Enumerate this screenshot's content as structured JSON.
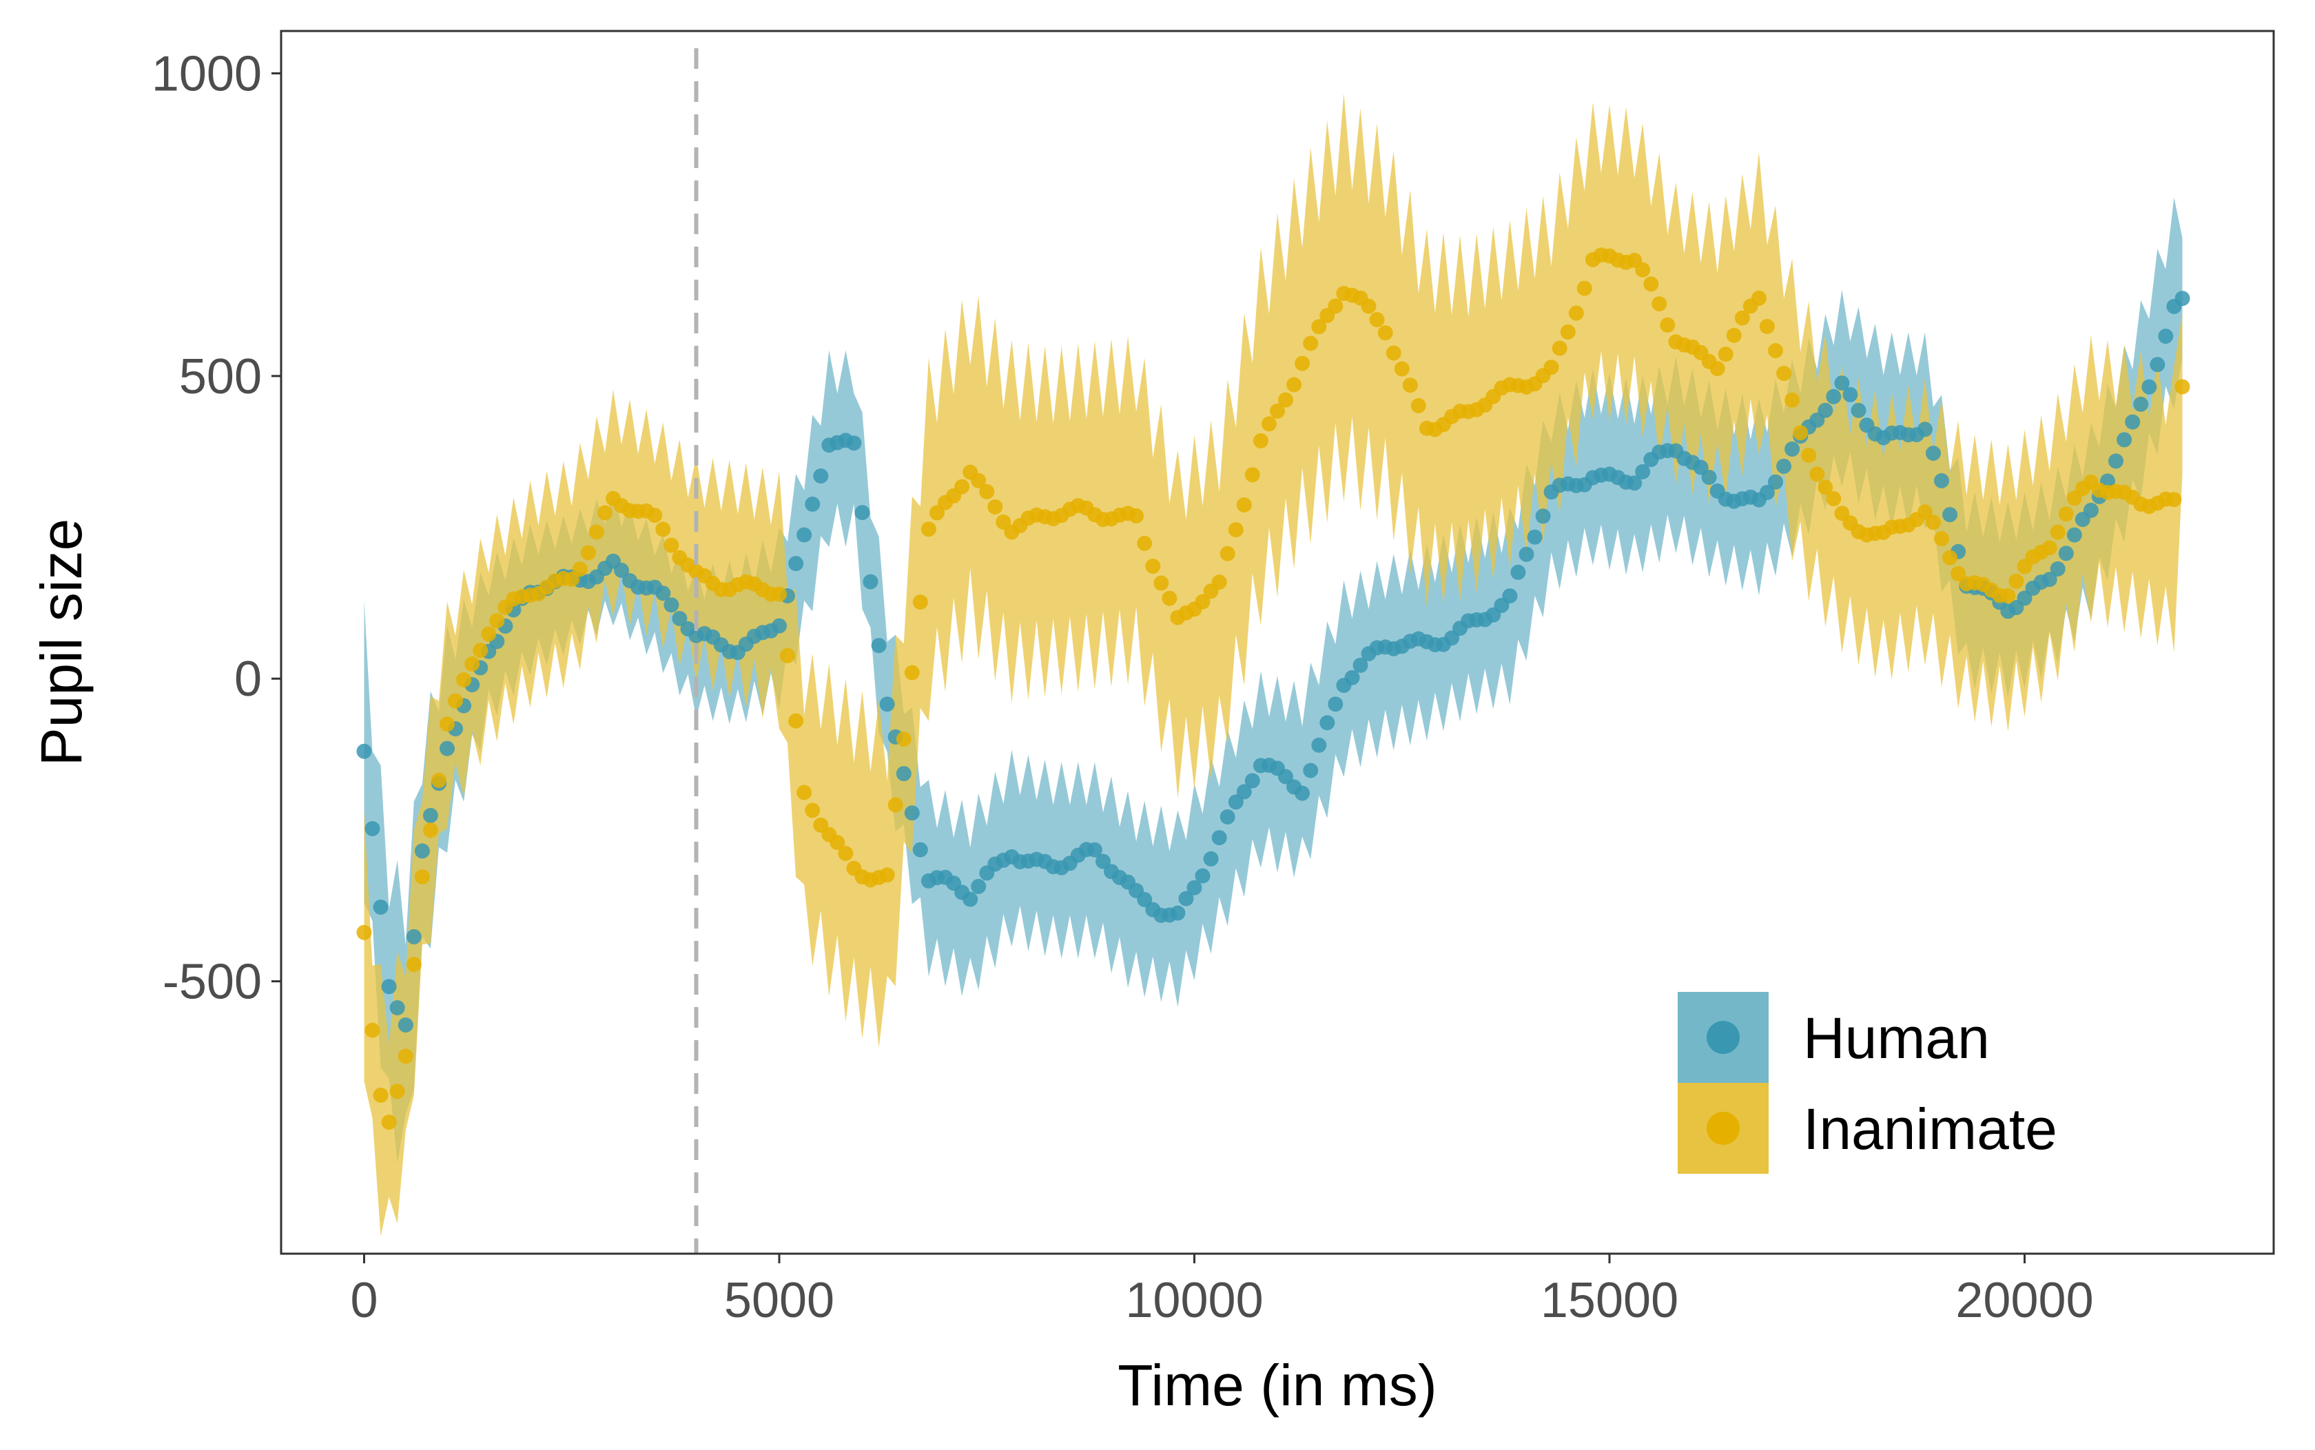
{
  "chart_data": {
    "type": "scatter",
    "title": "",
    "xlabel": "Time (in ms)",
    "ylabel": "Pupil size",
    "xlim": [
      -1000,
      23000
    ],
    "ylim": [
      -950,
      1070
    ],
    "xticks": [
      0,
      5000,
      10000,
      15000,
      20000
    ],
    "xtick_labels": [
      "0",
      "5000",
      "10000",
      "15000",
      "20000"
    ],
    "yticks": [
      -500,
      0,
      500,
      1000
    ],
    "ytick_labels": [
      "-500",
      "0",
      "500",
      "1000"
    ],
    "grid": false,
    "legend_position": "bottom-right",
    "reference_line": {
      "x": 4000,
      "style": "dashed",
      "color": "#b3b3b3"
    },
    "series": [
      {
        "name": "Human",
        "color": "#3a97b1",
        "ribbon_color": "#73b7c9",
        "anchors_x": [
          0,
          150,
          300,
          500,
          700,
          1000,
          1500,
          2000,
          2500,
          3000,
          3500,
          4000,
          4500,
          5000,
          5300,
          5600,
          5900,
          6300,
          6800,
          7300,
          7800,
          8300,
          8800,
          9300,
          9800,
          10300,
          10800,
          11300,
          11800,
          12300,
          12800,
          13300,
          13800,
          14300,
          14800,
          15300,
          15800,
          16300,
          16800,
          17300,
          17800,
          18300,
          18800,
          19300,
          19800,
          20300,
          20800,
          21300,
          21800,
          21900
        ],
        "anchors_y": [
          -120,
          -330,
          -520,
          -580,
          -300,
          -100,
          60,
          130,
          160,
          200,
          140,
          60,
          60,
          100,
          220,
          380,
          380,
          -30,
          -330,
          -370,
          -280,
          -300,
          -300,
          -360,
          -380,
          -270,
          -150,
          -170,
          0,
          40,
          60,
          100,
          120,
          300,
          350,
          330,
          370,
          320,
          300,
          380,
          480,
          410,
          410,
          150,
          130,
          170,
          260,
          420,
          620,
          630
        ],
        "ribbon_halfwidth": [
          200,
          200,
          200,
          200,
          180,
          150,
          110,
          100,
          90,
          90,
          90,
          100,
          110,
          120,
          130,
          130,
          130,
          130,
          130,
          130,
          130,
          130,
          130,
          130,
          130,
          130,
          130,
          130,
          130,
          130,
          130,
          130,
          130,
          130,
          130,
          130,
          130,
          130,
          130,
          130,
          130,
          130,
          130,
          130,
          130,
          130,
          130,
          130,
          140,
          140
        ]
      },
      {
        "name": "Inanimate",
        "color": "#e5b000",
        "ribbon_color": "#e8c341",
        "anchors_x": [
          0,
          150,
          300,
          500,
          700,
          1000,
          1500,
          2000,
          2500,
          3000,
          3500,
          4000,
          4500,
          5000,
          5300,
          5600,
          5900,
          6300,
          6800,
          7300,
          7800,
          8300,
          8800,
          9300,
          9800,
          10300,
          10800,
          11300,
          11800,
          12300,
          12800,
          13300,
          13800,
          14300,
          14800,
          15300,
          15800,
          16300,
          16800,
          17300,
          17800,
          18300,
          18800,
          19300,
          19800,
          20300,
          20800,
          21300,
          21800,
          21900
        ],
        "anchors_y": [
          -440,
          -680,
          -730,
          -620,
          -320,
          -60,
          70,
          140,
          180,
          290,
          250,
          180,
          160,
          130,
          -200,
          -250,
          -300,
          -330,
          230,
          350,
          260,
          260,
          270,
          280,
          90,
          140,
          400,
          530,
          630,
          580,
          430,
          430,
          470,
          520,
          690,
          680,
          570,
          530,
          620,
          400,
          280,
          230,
          260,
          170,
          150,
          210,
          330,
          310,
          280,
          470
        ],
        "ribbon_halfwidth": [
          180,
          180,
          180,
          180,
          170,
          150,
          150,
          150,
          150,
          150,
          150,
          150,
          160,
          170,
          200,
          220,
          230,
          230,
          240,
          240,
          240,
          230,
          230,
          230,
          230,
          240,
          250,
          260,
          270,
          260,
          250,
          240,
          230,
          230,
          210,
          210,
          200,
          200,
          200,
          200,
          190,
          190,
          190,
          190,
          190,
          190,
          190,
          190,
          190,
          190
        ]
      }
    ]
  }
}
